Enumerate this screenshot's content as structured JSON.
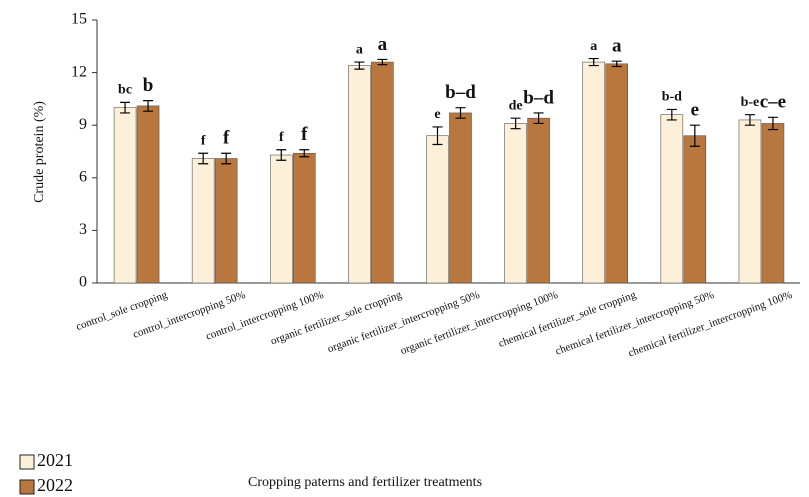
{
  "chart_data": {
    "type": "bar",
    "y_label": "Crude protein (%)",
    "x_label": "Cropping paterns and fertilizer treatments",
    "categories": [
      "control_sole cropping",
      "control_intercropping 50%",
      "control_intercropping 100%",
      "organic fertilizer_sole cropping",
      "organic fertilizer_intercropping 50%",
      "organic fertilizer_intercropping 100%",
      "chemical fertilizer_sole cropping",
      "chemical fertilizer_intercropping 50%",
      "chemical fertilizer_intercropping 100%"
    ],
    "series": [
      {
        "name": "2021",
        "color": "#fcf1d8",
        "values": [
          10.0,
          7.1,
          7.3,
          12.4,
          8.4,
          9.1,
          12.6,
          9.6,
          9.3
        ],
        "errors": [
          0.3,
          0.3,
          0.3,
          0.2,
          0.5,
          0.3,
          0.2,
          0.3,
          0.3
        ],
        "letters": [
          "bc",
          "f",
          "f",
          "a",
          "e",
          "de",
          "a",
          "b-d",
          "b-e"
        ]
      },
      {
        "name": "2022",
        "color": "#b8773f",
        "values": [
          10.1,
          7.1,
          7.4,
          12.6,
          9.7,
          9.4,
          12.5,
          8.4,
          9.1
        ],
        "errors": [
          0.3,
          0.3,
          0.2,
          0.15,
          0.3,
          0.3,
          0.15,
          0.6,
          0.35
        ],
        "letters": [
          "b",
          "f",
          "f",
          "a",
          "b–d",
          "b–d",
          "a",
          "e",
          "c–e"
        ]
      }
    ],
    "ylim": [
      0,
      15
    ],
    "yticks": [
      0,
      3,
      6,
      9,
      12,
      15
    ]
  }
}
